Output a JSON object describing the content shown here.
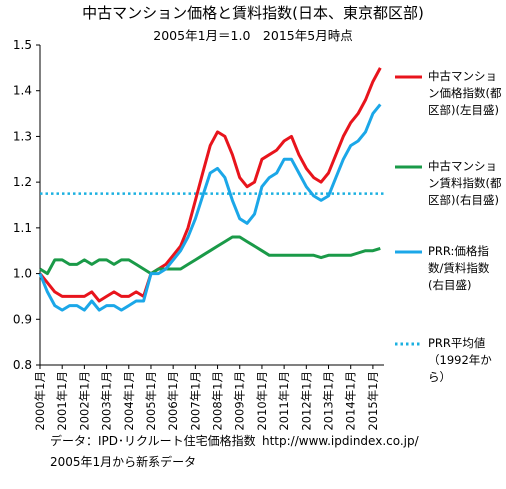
{
  "chart_data": {
    "type": "line",
    "title": "中古マンション価格と賃料指数(日本、東京都区部)",
    "subtitle": "2005年1月＝1.0　2015年5月時点",
    "x": [
      2000,
      2000.333,
      2000.667,
      2001,
      2001.333,
      2001.667,
      2002,
      2002.333,
      2002.667,
      2003,
      2003.333,
      2003.667,
      2004,
      2004.333,
      2004.667,
      2005,
      2005.333,
      2005.667,
      2006,
      2006.333,
      2006.667,
      2007,
      2007.333,
      2007.667,
      2008,
      2008.333,
      2008.667,
      2009,
      2009.333,
      2009.667,
      2010,
      2010.333,
      2010.667,
      2011,
      2011.333,
      2011.667,
      2012,
      2012.333,
      2012.667,
      2013,
      2013.333,
      2013.667,
      2014,
      2014.333,
      2014.667,
      2015,
      2015.333
    ],
    "xlim": [
      2000,
      2015.5
    ],
    "xticks": [
      {
        "value": 2000,
        "label": "2000年1月"
      },
      {
        "value": 2001,
        "label": "2001年1月"
      },
      {
        "value": 2002,
        "label": "2002年1月"
      },
      {
        "value": 2003,
        "label": "2003年1月"
      },
      {
        "value": 2004,
        "label": "2004年1月"
      },
      {
        "value": 2005,
        "label": "2005年1月"
      },
      {
        "value": 2006,
        "label": "2006年1月"
      },
      {
        "value": 2007,
        "label": "2007年1月"
      },
      {
        "value": 2008,
        "label": "2008年1月"
      },
      {
        "value": 2009,
        "label": "2009年1月"
      },
      {
        "value": 2010,
        "label": "2010年1月"
      },
      {
        "value": 2011,
        "label": "2011年1月"
      },
      {
        "value": 2012,
        "label": "2012年1月"
      },
      {
        "value": 2013,
        "label": "2013年1月"
      },
      {
        "value": 2014,
        "label": "2014年1月"
      },
      {
        "value": 2015,
        "label": "2015年1月"
      }
    ],
    "ylim": [
      0.8,
      1.5
    ],
    "yticks": [
      0.8,
      0.9,
      {
        "value": 1,
        "label": "1.0"
      },
      1.1,
      1.2,
      1.3,
      1.4,
      1.5
    ],
    "series": [
      {
        "name": "中古マンション価格指数(都区部)(左目盛)",
        "color": "#e8141c",
        "values": [
          1.0,
          0.98,
          0.96,
          0.95,
          0.95,
          0.95,
          0.95,
          0.96,
          0.94,
          0.95,
          0.96,
          0.95,
          0.95,
          0.96,
          0.95,
          1.0,
          1.01,
          1.02,
          1.04,
          1.06,
          1.1,
          1.16,
          1.22,
          1.28,
          1.31,
          1.3,
          1.26,
          1.21,
          1.19,
          1.2,
          1.25,
          1.26,
          1.27,
          1.29,
          1.3,
          1.26,
          1.23,
          1.21,
          1.2,
          1.22,
          1.26,
          1.3,
          1.33,
          1.35,
          1.38,
          1.42,
          1.45
        ]
      },
      {
        "name": "中古マンション賃料指数(都区部)(右目盛)",
        "color": "#1a9a48",
        "values": [
          1.01,
          1.0,
          1.03,
          1.03,
          1.02,
          1.02,
          1.03,
          1.02,
          1.03,
          1.03,
          1.02,
          1.03,
          1.03,
          1.02,
          1.01,
          1.0,
          1.01,
          1.01,
          1.01,
          1.01,
          1.02,
          1.03,
          1.04,
          1.05,
          1.06,
          1.07,
          1.08,
          1.08,
          1.07,
          1.06,
          1.05,
          1.04,
          1.04,
          1.04,
          1.04,
          1.04,
          1.04,
          1.04,
          1.035,
          1.04,
          1.04,
          1.04,
          1.04,
          1.045,
          1.05,
          1.05,
          1.055
        ]
      },
      {
        "name": "PRR:価格指数/賃料指数(右目盛)",
        "color": "#1ba7e8",
        "values": [
          1.0,
          0.96,
          0.93,
          0.92,
          0.93,
          0.93,
          0.92,
          0.94,
          0.92,
          0.93,
          0.93,
          0.92,
          0.93,
          0.94,
          0.94,
          1.0,
          1.0,
          1.01,
          1.03,
          1.05,
          1.08,
          1.12,
          1.17,
          1.22,
          1.23,
          1.21,
          1.16,
          1.12,
          1.11,
          1.13,
          1.19,
          1.21,
          1.22,
          1.25,
          1.25,
          1.22,
          1.19,
          1.17,
          1.16,
          1.17,
          1.21,
          1.25,
          1.28,
          1.29,
          1.31,
          1.35,
          1.37
        ]
      }
    ],
    "reference_lines": [
      {
        "name": "PRR平均値（1992年から）",
        "value": 1.175,
        "color": "#1bb0e0"
      }
    ],
    "notes": [
      "データ：IPD･リクルート住宅価格指数",
      "http://www.ipdindex.co.jp/",
      "2005年1月から新系データ"
    ]
  }
}
